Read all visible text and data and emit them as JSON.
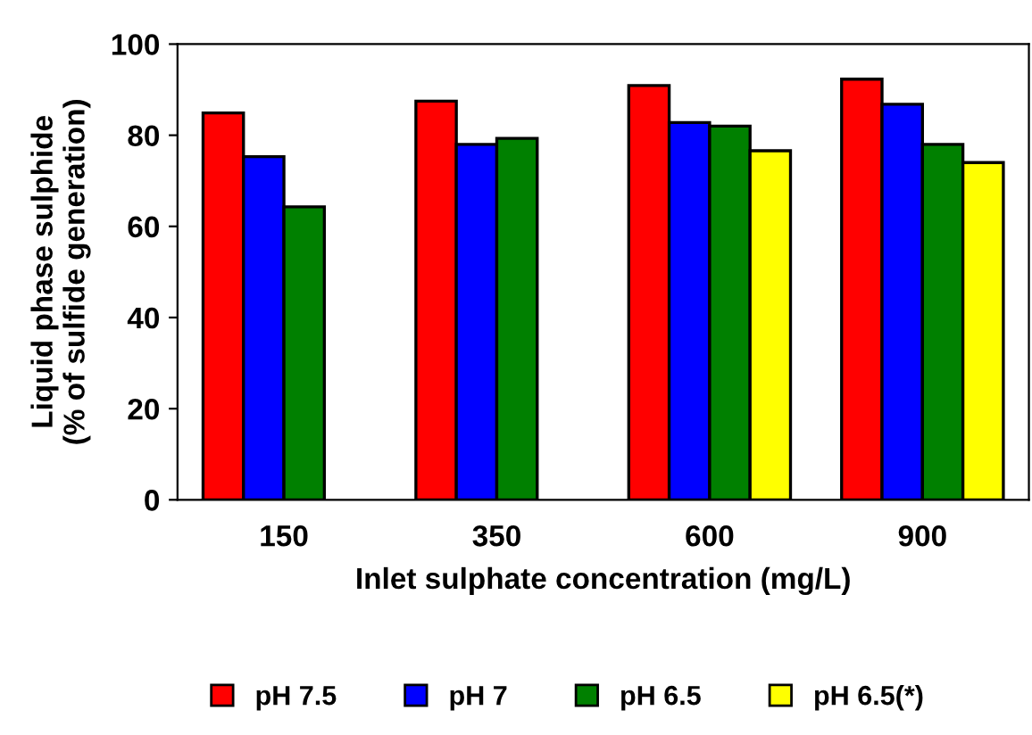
{
  "chart_data": {
    "type": "bar",
    "xlabel": "Inlet sulphate concentration (mg/L)",
    "ylabel": "Liquid phase sulphide\n(% of sulfide generation)",
    "categories": [
      "150",
      "350",
      "600",
      "900"
    ],
    "series": [
      {
        "name": "pH 7.5",
        "color": "#ff0000",
        "values": [
          84.9,
          87.5,
          90.9,
          92.3
        ]
      },
      {
        "name": "pH 7",
        "color": "#0000ff",
        "values": [
          75.3,
          78,
          82.8,
          86.8
        ]
      },
      {
        "name": "pH 6.5",
        "color": "#008000",
        "values": [
          64.3,
          79.3,
          82,
          78
        ]
      },
      {
        "name": "pH 6.5(*)",
        "color": "#ffff00",
        "values": [
          null,
          null,
          76.6,
          74
        ]
      }
    ],
    "ylim": [
      0,
      100
    ],
    "yticks": [
      0,
      20,
      40,
      60,
      80,
      100
    ],
    "grid": false,
    "legend": "bottom"
  }
}
